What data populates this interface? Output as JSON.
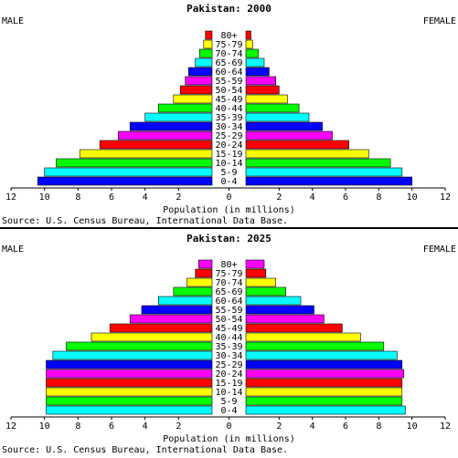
{
  "chart_data": [
    {
      "type": "bar",
      "title": "Pakistan: 2000",
      "left_label": "MALE",
      "right_label": "FEMALE",
      "xlabel": "Population (in millions)",
      "source": "Source: U.S. Census Bureau, International Data Base.",
      "xlim": [
        0,
        12
      ],
      "x_ticks": [
        "12",
        "10",
        "8",
        "6",
        "4",
        "2",
        "0",
        "2",
        "4",
        "6",
        "8",
        "10",
        "12"
      ],
      "categories": [
        "80+",
        "75-79",
        "70-74",
        "65-69",
        "60-64",
        "55-59",
        "50-54",
        "45-49",
        "40-44",
        "35-39",
        "30-34",
        "25-29",
        "20-24",
        "15-19",
        "10-14",
        "5-9",
        "0-4"
      ],
      "series": [
        {
          "name": "MALE",
          "values": [
            0.4,
            0.5,
            0.75,
            1.0,
            1.4,
            1.6,
            1.9,
            2.3,
            3.2,
            4.0,
            4.9,
            5.6,
            6.7,
            7.9,
            9.3,
            10.0,
            10.4
          ]
        },
        {
          "name": "FEMALE",
          "values": [
            0.3,
            0.4,
            0.75,
            1.1,
            1.4,
            1.8,
            2.0,
            2.5,
            3.2,
            3.8,
            4.6,
            5.2,
            6.2,
            7.4,
            8.7,
            9.4,
            10.0
          ]
        }
      ]
    },
    {
      "type": "bar",
      "title": "Pakistan: 2025",
      "left_label": "MALE",
      "right_label": "FEMALE",
      "xlabel": "Population (in millions)",
      "source": "Source: U.S. Census Bureau, International Data Base.",
      "xlim": [
        0,
        12
      ],
      "x_ticks": [
        "12",
        "10",
        "8",
        "6",
        "4",
        "2",
        "0",
        "2",
        "4",
        "6",
        "8",
        "10",
        "12"
      ],
      "categories": [
        "80+",
        "75-79",
        "70-74",
        "65-69",
        "60-64",
        "55-59",
        "50-54",
        "45-49",
        "40-44",
        "35-39",
        "30-34",
        "25-29",
        "20-24",
        "15-19",
        "10-14",
        "5-9",
        "0-4"
      ],
      "series": [
        {
          "name": "MALE",
          "values": [
            0.8,
            1.0,
            1.5,
            2.3,
            3.2,
            4.2,
            4.9,
            6.1,
            7.2,
            8.7,
            9.5,
            9.9,
            9.9,
            9.9,
            9.9,
            9.9,
            9.9
          ]
        },
        {
          "name": "FEMALE",
          "values": [
            1.1,
            1.2,
            1.8,
            2.4,
            3.3,
            4.1,
            4.7,
            5.8,
            6.9,
            8.3,
            9.1,
            9.4,
            9.5,
            9.4,
            9.4,
            9.4,
            9.6
          ]
        }
      ]
    }
  ],
  "colors": [
    "#ff0000",
    "#ffff00",
    "#00ff00",
    "#00ffff",
    "#0000ff",
    "#ff00ff",
    "#ff0000",
    "#ffff00",
    "#00ff00",
    "#00ffff",
    "#0000ff",
    "#ff00ff",
    "#ff0000",
    "#ffff00",
    "#00ff00",
    "#00ffff",
    "#0000ff"
  ],
  "colors_2025": [
    "#ff00ff",
    "#ff0000",
    "#ffff00",
    "#00ff00",
    "#00ffff",
    "#0000ff",
    "#ff00ff",
    "#ff0000",
    "#ffff00",
    "#00ff00",
    "#00ffff",
    "#0000ff",
    "#ff00ff",
    "#ff0000",
    "#ffff00",
    "#00ff00",
    "#00ffff"
  ]
}
